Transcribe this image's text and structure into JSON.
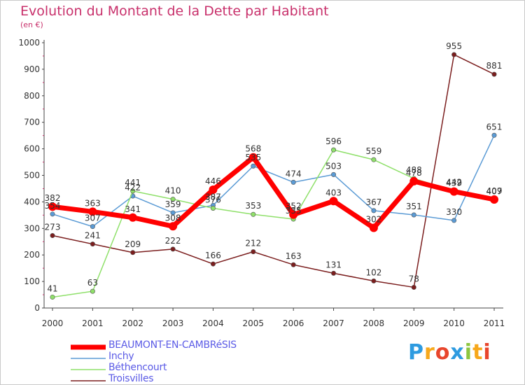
{
  "chart_data": {
    "type": "line",
    "title": "Evolution du Montant de la Dette par Habitant",
    "unit_label": "(en €)",
    "xlabel": "",
    "ylabel": "",
    "ylim": [
      0,
      1000
    ],
    "yticks": [
      0,
      100,
      200,
      300,
      400,
      500,
      600,
      700,
      800,
      900,
      1000
    ],
    "categories": [
      "2000",
      "2001",
      "2002",
      "2003",
      "2004",
      "2005",
      "2006",
      "2007",
      "2008",
      "2009",
      "2010",
      "2011"
    ],
    "series": [
      {
        "name": "Troisvilles",
        "color": "#7b1e1e",
        "values": [
          273,
          241,
          209,
          222,
          166,
          212,
          163,
          131,
          102,
          78,
          955,
          881
        ]
      },
      {
        "name": "Inchy",
        "color": "#5b9bd5",
        "values": [
          354,
          307,
          422,
          359,
          387,
          535,
          474,
          503,
          367,
          351,
          330,
          651
        ]
      },
      {
        "name": "Béthencourt",
        "color": "#8fe06a",
        "values": [
          41,
          63,
          441,
          410,
          376,
          353,
          335,
          596,
          559,
          488,
          442,
          407
        ]
      },
      {
        "name": "BEAUMONT-EN-CAMBRéSIS",
        "color": "#ff0000",
        "values": [
          382,
          363,
          341,
          308,
          446,
          568,
          352,
          403,
          302,
          478,
          439,
          409
        ]
      }
    ],
    "legend": [
      "BEAUMONT-EN-CAMBRéSIS",
      "Inchy",
      "Béthencourt",
      "Troisvilles"
    ],
    "legend_position": "bottom-left",
    "grid": false
  },
  "brand": {
    "letters": [
      "P",
      "r",
      "o",
      "x",
      "i",
      "t",
      "i"
    ],
    "colors": [
      "#2e9be0",
      "#f7a81b",
      "#e8452c",
      "#2e9be0",
      "#8cc63f",
      "#f7a81b",
      "#e8452c"
    ]
  }
}
